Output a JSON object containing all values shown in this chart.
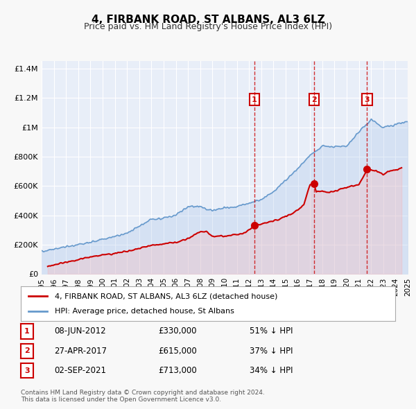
{
  "title": "4, FIRBANK ROAD, ST ALBANS, AL3 6LZ",
  "subtitle": "Price paid vs. HM Land Registry's House Price Index (HPI)",
  "background_color": "#f0f4ff",
  "plot_bg_color": "#e8eef8",
  "legend_label_red": "4, FIRBANK ROAD, ST ALBANS, AL3 6LZ (detached house)",
  "legend_label_blue": "HPI: Average price, detached house, St Albans",
  "footer": "Contains HM Land Registry data © Crown copyright and database right 2024.\nThis data is licensed under the Open Government Licence v3.0.",
  "transactions": [
    {
      "num": 1,
      "date": "08-JUN-2012",
      "price": 330000,
      "pct": "51%",
      "year": 2012.44
    },
    {
      "num": 2,
      "date": "27-APR-2017",
      "price": 615000,
      "pct": "37%",
      "year": 2017.32
    },
    {
      "num": 3,
      "date": "02-SEP-2021",
      "price": 713000,
      "pct": "34%",
      "year": 2021.67
    }
  ],
  "hpi_years": [
    1995,
    1996,
    1997,
    1998,
    1999,
    2000,
    2001,
    2002,
    2003,
    2004,
    2005,
    2006,
    2007,
    2008,
    2009,
    2010,
    2011,
    2012,
    2013,
    2014,
    2015,
    2016,
    2017,
    2018,
    2019,
    2020,
    2021,
    2022,
    2023,
    2024,
    2025
  ],
  "hpi_values": [
    155000,
    170000,
    185000,
    200000,
    215000,
    240000,
    255000,
    280000,
    325000,
    370000,
    380000,
    400000,
    460000,
    460000,
    430000,
    450000,
    460000,
    480000,
    510000,
    560000,
    640000,
    720000,
    810000,
    870000,
    870000,
    870000,
    970000,
    1050000,
    1000000,
    1020000,
    1040000
  ],
  "price_paid_years": [
    1995.5,
    1997,
    1998,
    1999,
    2000,
    2001,
    2002,
    2003,
    2004,
    2005,
    2006,
    2007,
    2008,
    2008.5,
    2009,
    2010,
    2010.5,
    2011,
    2011.5,
    2012,
    2012.44,
    2013,
    2013.5,
    2014,
    2014.5,
    2015,
    2015.5,
    2016,
    2016.5,
    2017,
    2017.32,
    2017.5,
    2018,
    2018.5,
    2019,
    2019.5,
    2020,
    2020.5,
    2021,
    2021.67,
    2022,
    2022.5,
    2023,
    2023.5,
    2024,
    2024.5
  ],
  "price_paid_values": [
    55000,
    80000,
    100000,
    115000,
    130000,
    140000,
    155000,
    175000,
    195000,
    205000,
    215000,
    245000,
    290000,
    290000,
    255000,
    260000,
    265000,
    270000,
    275000,
    300000,
    330000,
    345000,
    350000,
    365000,
    375000,
    395000,
    410000,
    440000,
    475000,
    610000,
    615000,
    560000,
    565000,
    555000,
    565000,
    580000,
    590000,
    600000,
    610000,
    713000,
    710000,
    700000,
    680000,
    700000,
    710000,
    720000
  ],
  "ylim": [
    0,
    1450000
  ],
  "xlim": [
    1995,
    2025
  ],
  "yticks": [
    0,
    200000,
    400000,
    600000,
    800000,
    1000000,
    1200000,
    1400000
  ],
  "ytick_labels": [
    "£0",
    "£200K",
    "£400K",
    "£600K",
    "£800K",
    "£1M",
    "£1.2M",
    "£1.4M"
  ],
  "xticks": [
    1995,
    1996,
    1997,
    1998,
    1999,
    2000,
    2001,
    2002,
    2003,
    2004,
    2005,
    2006,
    2007,
    2008,
    2009,
    2010,
    2011,
    2012,
    2013,
    2014,
    2015,
    2016,
    2017,
    2018,
    2019,
    2020,
    2021,
    2022,
    2023,
    2024,
    2025
  ]
}
